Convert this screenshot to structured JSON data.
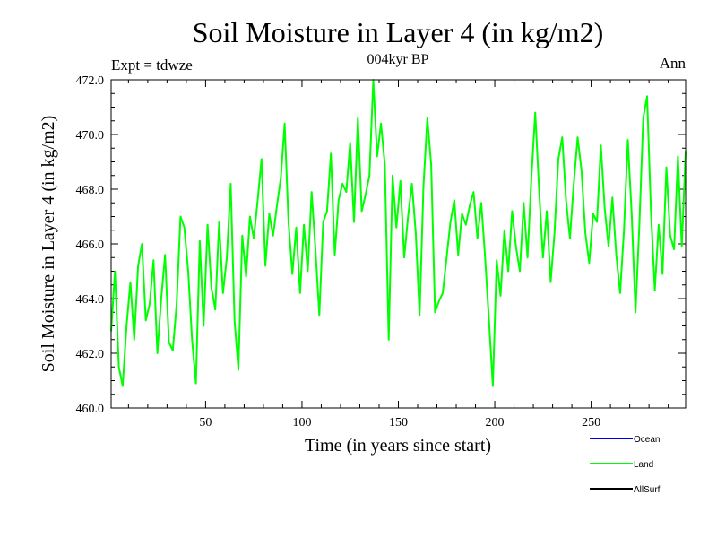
{
  "chart_data": {
    "type": "line",
    "title": "Soil Moisture in Layer 4 (in kg/m2)",
    "subtitle": "004kyr BP",
    "left_note": "Expt = tdwze",
    "right_note": "Ann",
    "xlabel": "Time (in years since start)",
    "ylabel": "Soil Moisture in Layer 4 (in kg/m2)",
    "xlim": [
      1,
      299
    ],
    "ylim": [
      460.0,
      472.0
    ],
    "xticks": [
      50,
      100,
      150,
      200,
      250
    ],
    "xtick_labels": [
      "50",
      "100",
      "150",
      "200",
      "250"
    ],
    "yticks": [
      460,
      462,
      464,
      466,
      468,
      470,
      472
    ],
    "ytick_labels": [
      "460.0",
      "462.0",
      "464.0",
      "466.0",
      "468.0",
      "470.0",
      "472.0"
    ],
    "grid": false,
    "legend_position": "bottom-right",
    "series": [
      {
        "name": "Ocean",
        "color": "#0000ee",
        "values": []
      },
      {
        "name": "Land",
        "color": "#00ff00",
        "x": [
          1,
          3,
          5,
          7,
          9,
          11,
          13,
          15,
          17,
          19,
          21,
          23,
          25,
          27,
          29,
          31,
          33,
          35,
          37,
          39,
          41,
          43,
          45,
          47,
          49,
          51,
          53,
          55,
          57,
          59,
          61,
          63,
          65,
          67,
          69,
          71,
          73,
          75,
          77,
          79,
          81,
          83,
          85,
          87,
          89,
          91,
          93,
          95,
          97,
          99,
          101,
          103,
          105,
          107,
          109,
          111,
          113,
          115,
          117,
          119,
          121,
          123,
          125,
          127,
          129,
          131,
          133,
          135,
          137,
          139,
          141,
          143,
          145,
          147,
          149,
          151,
          153,
          155,
          157,
          159,
          161,
          163,
          165,
          167,
          169,
          171,
          173,
          175,
          177,
          179,
          181,
          183,
          185,
          187,
          189,
          191,
          193,
          195,
          197,
          199,
          201,
          203,
          205,
          207,
          209,
          211,
          213,
          215,
          217,
          219,
          221,
          223,
          225,
          227,
          229,
          231,
          233,
          235,
          237,
          239,
          241,
          243,
          245,
          247,
          249,
          251,
          253,
          255,
          257,
          259,
          261,
          263,
          265,
          267,
          269,
          271,
          273,
          275,
          277,
          279,
          281,
          283,
          285,
          287,
          289,
          291,
          293,
          295,
          297,
          299
        ],
        "values": [
          462.8,
          465.0,
          461.5,
          460.8,
          463.0,
          464.6,
          462.5,
          465.2,
          466.0,
          463.2,
          463.8,
          465.4,
          462.0,
          464.0,
          465.6,
          462.4,
          462.1,
          463.8,
          467.0,
          466.6,
          465.0,
          462.5,
          460.9,
          466.1,
          463.0,
          466.7,
          464.4,
          463.6,
          466.8,
          464.2,
          465.5,
          468.2,
          463.2,
          461.4,
          466.3,
          464.8,
          467.0,
          466.2,
          467.6,
          469.1,
          465.2,
          467.1,
          466.3,
          467.4,
          468.4,
          470.4,
          466.8,
          464.9,
          466.6,
          464.2,
          466.7,
          465.0,
          467.9,
          465.8,
          463.4,
          466.8,
          467.2,
          469.3,
          465.6,
          467.6,
          468.2,
          467.9,
          469.7,
          466.8,
          470.6,
          467.2,
          467.8,
          468.5,
          472.0,
          469.2,
          470.4,
          468.9,
          462.5,
          468.5,
          466.6,
          468.3,
          465.5,
          467.0,
          468.2,
          466.4,
          463.4,
          468.1,
          470.6,
          468.9,
          463.5,
          463.9,
          464.2,
          465.5,
          466.8,
          467.6,
          465.6,
          467.1,
          466.7,
          467.4,
          467.9,
          466.2,
          467.5,
          465.5,
          463.2,
          460.8,
          465.4,
          464.1,
          466.5,
          465.0,
          467.2,
          465.9,
          465.0,
          467.5,
          465.5,
          468.4,
          470.8,
          468.0,
          465.5,
          467.2,
          464.6,
          466.4,
          469.1,
          469.9,
          467.6,
          466.2,
          468.2,
          469.9,
          468.7,
          466.4,
          465.3,
          467.1,
          466.8,
          469.6,
          467.3,
          465.9,
          467.7,
          465.6,
          464.2,
          466.5,
          469.8,
          467.1,
          463.5,
          466.7,
          470.6,
          471.4,
          467.2,
          464.3,
          466.7,
          464.9,
          468.8,
          466.3,
          465.8,
          469.2,
          465.9,
          469.4
        ]
      },
      {
        "name": "AllSurf",
        "color": "#000000",
        "values": []
      }
    ]
  }
}
